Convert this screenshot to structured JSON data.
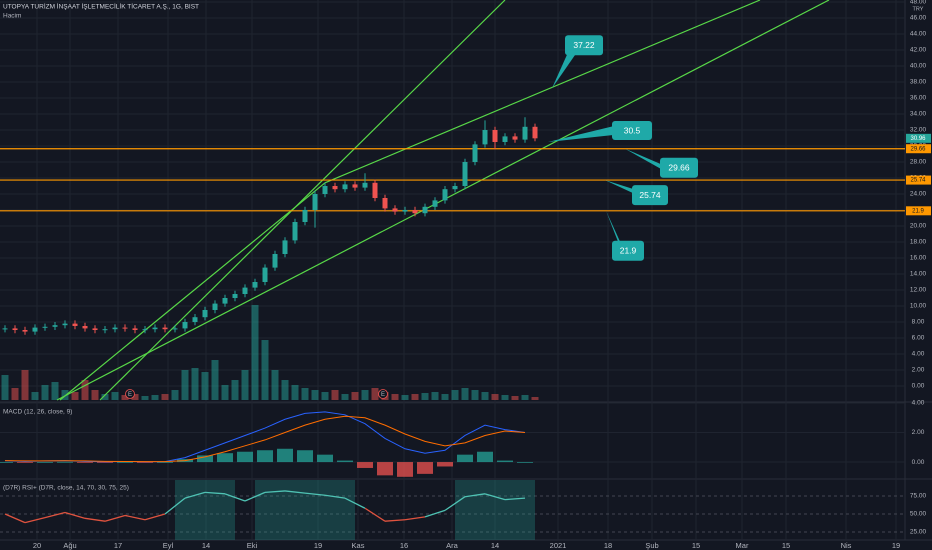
{
  "chart_data": [
    {
      "type": "candlestick",
      "title": "UTOPYA TURİZM İNŞAAT İŞLETMECİLİK TİCARET A.Ş., 1G, BIST",
      "subtitle": "Hacim",
      "currency": "TRY",
      "x": [
        0,
        1,
        2,
        3,
        4,
        5,
        6,
        7,
        8,
        9,
        10,
        11,
        12,
        13,
        14,
        15,
        16,
        17,
        18,
        19,
        20,
        21,
        22,
        23,
        24,
        25,
        26,
        27,
        28,
        29,
        30,
        31,
        32,
        33,
        34,
        35,
        36,
        37,
        38,
        39,
        40,
        41,
        42,
        43,
        44,
        45,
        46,
        47,
        48,
        49,
        50,
        51,
        52,
        53
      ],
      "open": [
        7.1,
        7.2,
        7.0,
        6.8,
        7.3,
        7.4,
        7.6,
        7.8,
        7.5,
        7.2,
        7.0,
        7.1,
        7.3,
        7.2,
        7.0,
        7.1,
        7.3,
        7.1,
        7.2,
        8.0,
        8.6,
        9.5,
        10.3,
        11.0,
        11.5,
        12.3,
        13.0,
        14.8,
        16.5,
        18.2,
        20.5,
        22.0,
        24.0,
        25.0,
        24.6,
        25.2,
        24.8,
        25.4,
        23.5,
        22.2,
        21.8,
        22.0,
        21.6,
        22.4,
        23.2,
        24.6,
        25.0,
        28.0,
        30.2,
        32.0,
        30.5,
        31.2,
        30.8,
        32.4
      ],
      "high": [
        7.6,
        7.6,
        7.4,
        7.7,
        7.8,
        8.0,
        8.2,
        8.2,
        7.9,
        7.6,
        7.5,
        7.7,
        7.7,
        7.6,
        7.5,
        7.7,
        7.7,
        7.6,
        8.4,
        9.0,
        9.9,
        10.7,
        11.4,
        11.9,
        12.7,
        13.4,
        15.2,
        16.9,
        18.6,
        20.9,
        22.4,
        24.4,
        25.4,
        25.4,
        25.6,
        25.6,
        26.6,
        25.8,
        23.9,
        22.6,
        22.4,
        22.4,
        22.8,
        23.6,
        25.0,
        25.4,
        28.4,
        30.6,
        33.2,
        32.4,
        31.6,
        31.6,
        33.6,
        32.8
      ],
      "low": [
        6.7,
        6.6,
        6.4,
        6.4,
        6.9,
        7.0,
        7.2,
        7.1,
        6.8,
        6.6,
        6.6,
        6.7,
        6.8,
        6.6,
        6.6,
        6.7,
        6.7,
        6.7,
        6.8,
        7.6,
        8.2,
        9.1,
        9.9,
        10.6,
        11.1,
        11.9,
        12.6,
        14.4,
        16.1,
        17.8,
        20.1,
        19.8,
        23.6,
        24.2,
        24.2,
        24.4,
        24.4,
        23.1,
        21.8,
        21.4,
        21.4,
        21.2,
        21.2,
        22.0,
        22.8,
        24.2,
        24.6,
        27.6,
        29.8,
        29.6,
        30.1,
        30.4,
        30.4,
        30.6
      ],
      "close": [
        7.2,
        7.0,
        6.8,
        7.3,
        7.4,
        7.6,
        7.8,
        7.5,
        7.2,
        7.0,
        7.1,
        7.3,
        7.2,
        7.0,
        7.1,
        7.3,
        7.1,
        7.2,
        8.0,
        8.6,
        9.5,
        10.3,
        11.0,
        11.5,
        12.3,
        13.0,
        14.8,
        16.5,
        18.2,
        20.5,
        22.0,
        24.0,
        25.0,
        24.6,
        25.2,
        24.8,
        25.4,
        23.5,
        22.2,
        21.8,
        22.0,
        21.6,
        22.4,
        23.2,
        24.6,
        25.0,
        28.0,
        30.2,
        32.0,
        30.5,
        31.2,
        30.8,
        32.4,
        30.96
      ],
      "up_color": "#26a69a",
      "down_color": "#ef5350",
      "volume": {
        "values": [
          25,
          12,
          30,
          8,
          15,
          18,
          10,
          8,
          20,
          10,
          6,
          8,
          5,
          6,
          4,
          5,
          6,
          10,
          30,
          32,
          28,
          40,
          15,
          20,
          30,
          95,
          60,
          30,
          20,
          15,
          12,
          10,
          8,
          10,
          6,
          8,
          10,
          12,
          8,
          6,
          5,
          6,
          7,
          8,
          6,
          10,
          12,
          10,
          8,
          6,
          5,
          4,
          5,
          3
        ],
        "ylim": [
          0,
          400
        ]
      },
      "xlim": [
        -0.5,
        90
      ],
      "xticks": [
        {
          "value": 3.2,
          "label": "20"
        },
        {
          "value": 6.5,
          "label": "Ağu"
        },
        {
          "value": 11.3,
          "label": "17"
        },
        {
          "value": 16.3,
          "label": "Eyl"
        },
        {
          "value": 20.1,
          "label": "14"
        },
        {
          "value": 24.7,
          "label": "Eki"
        },
        {
          "value": 31.3,
          "label": "19"
        },
        {
          "value": 35.3,
          "label": "Kas"
        },
        {
          "value": 39.9,
          "label": "16"
        },
        {
          "value": 44.7,
          "label": "Ara"
        },
        {
          "value": 49,
          "label": "14"
        },
        {
          "value": 55.3,
          "label": "2021"
        },
        {
          "value": 60.3,
          "label": "18"
        },
        {
          "value": 64.7,
          "label": "Şub"
        },
        {
          "value": 69.1,
          "label": "15"
        },
        {
          "value": 73.7,
          "label": "Mar"
        },
        {
          "value": 78.1,
          "label": "15"
        },
        {
          "value": 84.1,
          "label": "Nis"
        },
        {
          "value": 89.1,
          "label": "19"
        }
      ],
      "ylim": [
        -1.75,
        48.25
      ],
      "yticks": [
        {
          "value": 0,
          "label": "0.00"
        },
        {
          "value": 2,
          "label": "2.00"
        },
        {
          "value": 4,
          "label": "4.00"
        },
        {
          "value": 6,
          "label": "6.00"
        },
        {
          "value": 8,
          "label": "8.00"
        },
        {
          "value": 10,
          "label": "10.00"
        },
        {
          "value": 12,
          "label": "12.00"
        },
        {
          "value": 14,
          "label": "14.00"
        },
        {
          "value": 16,
          "label": "16.00"
        },
        {
          "value": 18,
          "label": "18.00"
        },
        {
          "value": 20,
          "label": "20.00"
        },
        {
          "value": 22,
          "label": "22.00"
        },
        {
          "value": 24,
          "label": "24.00"
        },
        {
          "value": 26,
          "label": "26.00"
        },
        {
          "value": 28,
          "label": "28.00"
        },
        {
          "value": 30,
          "label": "30.00"
        },
        {
          "value": 32,
          "label": "32.00"
        },
        {
          "value": 34,
          "label": "34.00"
        },
        {
          "value": 36,
          "label": "36.00"
        },
        {
          "value": 38,
          "label": "38.00"
        },
        {
          "value": 40,
          "label": "40.00"
        },
        {
          "value": 42,
          "label": "42.00"
        },
        {
          "value": 44,
          "label": "44.00"
        },
        {
          "value": 46,
          "label": "46.00"
        },
        {
          "value": 48,
          "label": "48.00"
        }
      ],
      "grid": true,
      "hlines": [
        {
          "value": 29.66,
          "color": "#ff9800"
        },
        {
          "value": 25.74,
          "color": "#ff9800"
        },
        {
          "value": 21.9,
          "color": "#ff9800"
        }
      ],
      "trend_color": "#58d848",
      "trendlines": [
        {
          "x": [
            9.5,
            50
          ],
          "y": [
            -1.75,
            48.25
          ]
        },
        {
          "x": [
            5.5,
            32
          ],
          "y": [
            -1.75,
            25.4
          ]
        },
        {
          "x": [
            32,
            75.5
          ],
          "y": [
            25.4,
            48.25
          ]
        },
        {
          "x": [
            5.2,
            82.4
          ],
          "y": [
            -1.75,
            48.25
          ]
        }
      ],
      "callout_color": "#1fa9a8",
      "callouts": [
        {
          "value": 37.22,
          "x": 54.7
        },
        {
          "value": 30.5,
          "x": 54.3
        },
        {
          "value": 29.66,
          "x": 62
        },
        {
          "value": 25.74,
          "x": 60
        },
        {
          "value": 21.9,
          "x": 60.1
        }
      ],
      "events": [
        {
          "label": "E",
          "x": 12.5
        },
        {
          "label": "E",
          "x": 37.8
        }
      ]
    },
    {
      "type": "macd",
      "title": "MACD (12, 26, close, 9)",
      "x": [
        0,
        2,
        4,
        6,
        8,
        10,
        12,
        14,
        16,
        18,
        20,
        22,
        24,
        26,
        28,
        30,
        32,
        34,
        36,
        38,
        40,
        42,
        44,
        46,
        48,
        50,
        52
      ],
      "series": [
        {
          "color": "#2962ff",
          "values": [
            0.1,
            0.05,
            0.08,
            0.1,
            0.05,
            0.02,
            0.04,
            0.02,
            0.03,
            0.3,
            0.8,
            1.3,
            1.8,
            2.3,
            2.9,
            3.3,
            3.4,
            3.2,
            2.6,
            1.6,
            0.9,
            0.6,
            0.8,
            1.8,
            2.5,
            2.2,
            2.0
          ]
        },
        {
          "color": "#ff6d00",
          "values": [
            0.1,
            0.08,
            0.08,
            0.09,
            0.08,
            0.05,
            0.04,
            0.03,
            0.03,
            0.1,
            0.35,
            0.7,
            1.1,
            1.5,
            2.0,
            2.5,
            2.9,
            3.1,
            3.0,
            2.5,
            1.9,
            1.4,
            1.1,
            1.3,
            1.8,
            2.1,
            2.0
          ]
        }
      ],
      "histogram": {
        "up_color": "#26a69a",
        "down_color": "#ef5350",
        "values": [
          0,
          -0.03,
          0,
          0.01,
          -0.03,
          -0.03,
          0,
          -0.01,
          0,
          0.2,
          0.45,
          0.6,
          0.7,
          0.8,
          0.9,
          0.8,
          0.5,
          0.1,
          -0.4,
          -0.9,
          -1.0,
          -0.8,
          -0.3,
          0.5,
          0.7,
          0.1,
          0
        ]
      },
      "ylim": [
        -1.08,
        4.0
      ],
      "yticks": [
        {
          "value": 0,
          "label": "0.00"
        },
        {
          "value": 2,
          "label": "2.00"
        },
        {
          "value": 4,
          "label": "4.00"
        }
      ]
    },
    {
      "type": "rsi",
      "title": "(D7R) RSI+ (D7R, close, 14, 70, 30, 75, 25)",
      "x": [
        0,
        2,
        4,
        6,
        8,
        10,
        12,
        14,
        16,
        18,
        20,
        22,
        24,
        26,
        28,
        30,
        32,
        34,
        36,
        38,
        40,
        42,
        44,
        46,
        48,
        50,
        52
      ],
      "values": [
        50,
        38,
        45,
        52,
        44,
        40,
        48,
        42,
        50,
        72,
        80,
        78,
        68,
        80,
        82,
        79,
        76,
        72,
        58,
        40,
        42,
        46,
        55,
        74,
        78,
        70,
        72
      ],
      "up_color": "#4fc3b4",
      "down_color": "#e0533f",
      "zone_color": "#26a69a",
      "threshold": 70,
      "ylim": [
        13.9,
        97.2
      ],
      "yticks": [
        {
          "value": 25,
          "label": "25.00"
        },
        {
          "value": 50,
          "label": "50.00"
        },
        {
          "value": 75,
          "label": "75.00"
        }
      ]
    }
  ]
}
